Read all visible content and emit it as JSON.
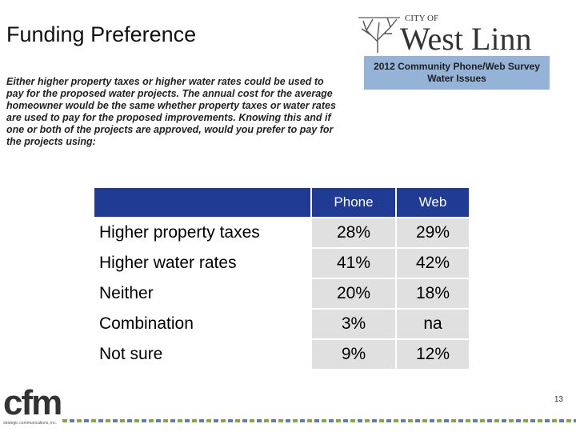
{
  "slide": {
    "title": "Funding Preference",
    "question": "Either higher property taxes or higher water rates could be used to pay for the proposed water projects. The annual cost for the average homeowner would be the same whether property taxes or water rates are used to pay for the proposed improvements. Knowing this and if one or both of the projects are approved, would you prefer to pay for the projects using:",
    "page_number": "13"
  },
  "logo": {
    "city_of": "CITY OF",
    "name": "West Linn"
  },
  "survey_box": {
    "line1": "2012 Community Phone/Web Survey",
    "line2": "Water Issues",
    "color": "#95b3d7"
  },
  "table": {
    "header_color": "#1f3b93",
    "columns": [
      "Phone",
      "Web"
    ],
    "rows": [
      {
        "label": "Higher property taxes",
        "phone": "28%",
        "web": "29%"
      },
      {
        "label": "Higher water rates",
        "phone": "41%",
        "web": "42%"
      },
      {
        "label": "Neither",
        "phone": "20%",
        "web": "18%"
      },
      {
        "label": "Combination",
        "phone": "3%",
        "web": "na"
      },
      {
        "label": "Not sure",
        "phone": "9%",
        "web": "12%"
      }
    ]
  },
  "footer": {
    "brand": "cfm",
    "tagline": "strategic communications, inc."
  }
}
